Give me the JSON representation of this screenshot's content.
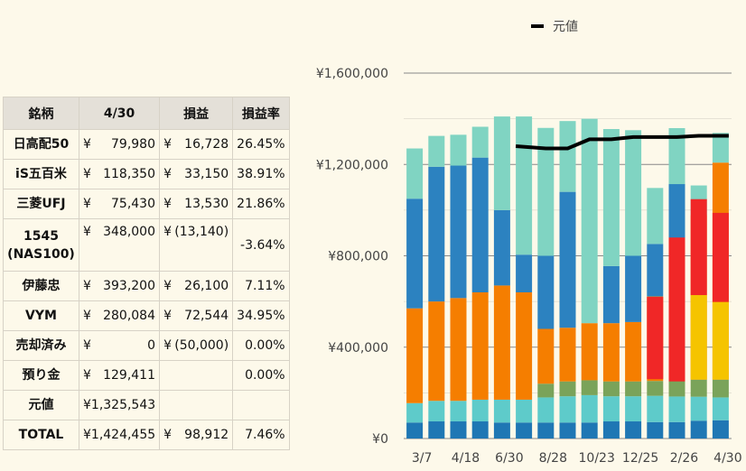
{
  "table": {
    "headers": [
      "銘柄",
      "4/30",
      "損益",
      "損益率"
    ],
    "rows": [
      {
        "name": [
          "日高配50"
        ],
        "value": "79,980",
        "pl": "16,728",
        "pl_yen": "¥",
        "rate": "26.45%"
      },
      {
        "name": [
          "iS五百米"
        ],
        "value": "118,350",
        "pl": "33,150",
        "pl_yen": "¥",
        "rate": "38.91%"
      },
      {
        "name": [
          "三菱UFJ"
        ],
        "value": "75,430",
        "pl": "13,530",
        "pl_yen": "¥",
        "rate": "21.86%"
      },
      {
        "name": [
          "1545",
          "(NAS100)"
        ],
        "value": "348,000",
        "pl": "(13,140)",
        "pl_yen": "¥",
        "rate": "-3.64%",
        "tall": true
      },
      {
        "name": [
          "伊藤忠"
        ],
        "value": "393,200",
        "pl": "26,100",
        "pl_yen": "¥",
        "rate": "7.11%"
      },
      {
        "name": [
          "VYM"
        ],
        "value": "280,084",
        "pl": "72,544",
        "pl_yen": "¥",
        "rate": "34.95%"
      },
      {
        "name": [
          "売却済み"
        ],
        "value": "0",
        "pl": "(50,000)",
        "pl_yen": "¥",
        "rate": "0.00%"
      },
      {
        "name": [
          "預り金"
        ],
        "value": "129,411",
        "pl": "",
        "pl_yen": "",
        "rate": "0.00%"
      },
      {
        "name": [
          "元値"
        ],
        "value_full": "¥1,325,543",
        "pl": "",
        "pl_yen": "",
        "rate": ""
      },
      {
        "name": [
          "TOTAL"
        ],
        "value_full": "¥1,424,455",
        "pl": "98,912",
        "pl_yen": "¥",
        "rate": "7.46%"
      }
    ],
    "yen": "¥"
  },
  "chart_data": {
    "type": "bar",
    "stacked": true,
    "ylim": [
      0,
      1600000
    ],
    "yticks": [
      "¥0",
      "¥400,000",
      "¥800,000",
      "¥1,200,000",
      "¥1,600,000"
    ],
    "ytick_values": [
      0,
      400000,
      800000,
      1200000,
      1600000
    ],
    "xticks": [
      "3/7",
      "4/18",
      "6/30",
      "8/28",
      "10/23",
      "12/25",
      "2/26",
      "4/30"
    ],
    "xtick_positions": [
      0,
      2,
      4,
      6,
      8,
      10,
      12,
      14
    ],
    "legend": [
      "元値"
    ],
    "legend_position": "top",
    "grid": true,
    "series": [
      {
        "color": "#1f77b4",
        "values": [
          70000,
          75000,
          75000,
          75000,
          70000,
          70000,
          70000,
          70000,
          70000,
          75000,
          75000,
          72000,
          72000,
          78000,
          80000
        ]
      },
      {
        "color": "#5ecbca",
        "values": [
          85000,
          90000,
          90000,
          95000,
          100000,
          100000,
          110000,
          115000,
          120000,
          110000,
          110000,
          115000,
          112000,
          105000,
          100000
        ]
      },
      {
        "color": "#7aa35a",
        "values": [
          0,
          0,
          0,
          0,
          0,
          0,
          60000,
          65000,
          65000,
          65000,
          65000,
          65000,
          70000,
          75000,
          78000
        ]
      },
      {
        "color": "#f57e00",
        "values": [
          415000,
          435000,
          450000,
          470000,
          500000,
          470000,
          240000,
          235000,
          250000,
          255000,
          260000,
          370000,
          400000,
          720000,
          950000
        ]
      },
      {
        "color": "#2c82c0",
        "values": [
          480000,
          590000,
          580000,
          590000,
          330000,
          165000,
          320000,
          595000,
          0,
          250000,
          290000,
          230000,
          460000,
          0,
          0
        ]
      },
      {
        "color": "#80d4c2",
        "values": [
          220000,
          135000,
          135000,
          135000,
          410000,
          605000,
          560000,
          310000,
          895000,
          600000,
          550000,
          245000,
          245000,
          130000,
          130000
        ]
      }
    ],
    "overlays": [
      {
        "color": "#f5c400",
        "values": [
          0,
          0,
          0,
          0,
          0,
          0,
          0,
          0,
          0,
          0,
          0,
          0,
          0,
          370000,
          340000
        ]
      },
      {
        "color": "#f02727",
        "values": [
          0,
          0,
          0,
          0,
          0,
          0,
          0,
          0,
          0,
          0,
          0,
          0,
          0,
          420000,
          390000
        ]
      }
    ],
    "line": {
      "name": "元値",
      "color": "#000000",
      "start_index": 5,
      "values": [
        null,
        null,
        null,
        null,
        null,
        1280000,
        1270000,
        1270000,
        1310000,
        1310000,
        1320000,
        1320000,
        1320000,
        1325543,
        1325543
      ]
    }
  }
}
